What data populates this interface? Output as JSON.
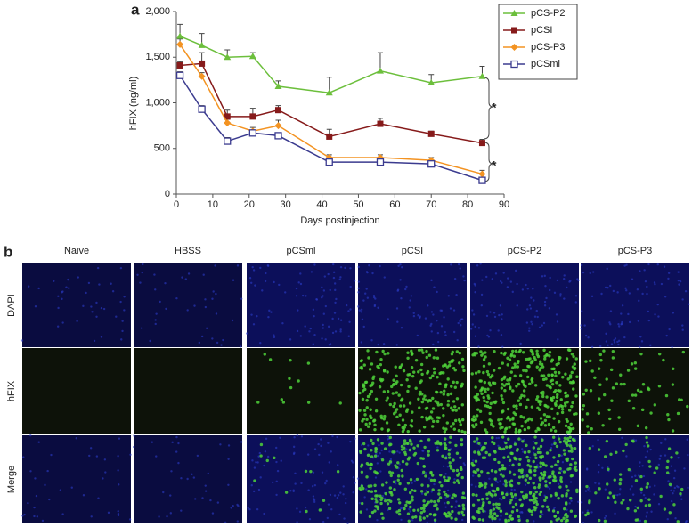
{
  "panel_labels": [
    "a",
    "b"
  ],
  "chart_data": {
    "type": "line",
    "x_label": "Days postinjection",
    "y_label": "hFIX (ng/ml)",
    "x": [
      1,
      7,
      14,
      21,
      28,
      42,
      56,
      70,
      84
    ],
    "series": [
      {
        "name": "pCS-P2",
        "color": "#6cbf3c",
        "marker": "triangle",
        "values": [
          1730,
          1630,
          1500,
          1510,
          1180,
          1110,
          1350,
          1220,
          1290
        ],
        "errors": [
          130,
          130,
          80,
          40,
          60,
          170,
          200,
          90,
          110
        ]
      },
      {
        "name": "pCSI",
        "color": "#861a1a",
        "marker": "square",
        "values": [
          1410,
          1430,
          850,
          850,
          920,
          630,
          770,
          660,
          560
        ],
        "errors": [
          40,
          120,
          70,
          90,
          50,
          80,
          60,
          30,
          40
        ]
      },
      {
        "name": "pCS-P3",
        "color": "#f39322",
        "marker": "diamond",
        "values": [
          1640,
          1290,
          780,
          690,
          750,
          400,
          400,
          370,
          220
        ],
        "errors": [
          60,
          40,
          40,
          40,
          60,
          30,
          30,
          30,
          40
        ]
      },
      {
        "name": "pCSml",
        "color": "#3b3b8f",
        "marker": "open-square",
        "values": [
          1300,
          930,
          580,
          670,
          640,
          350,
          350,
          330,
          150
        ],
        "errors": [
          40,
          40,
          40,
          30,
          20,
          20,
          20,
          20,
          30
        ]
      }
    ],
    "xlim": [
      0,
      90
    ],
    "xticks": [
      0,
      10,
      20,
      30,
      40,
      50,
      60,
      70,
      80,
      90
    ],
    "ylim": [
      0,
      2000
    ],
    "yticks": [
      0,
      500,
      {
        "value": 1000,
        "label": "1,000"
      },
      {
        "value": 1500,
        "label": "1,500"
      },
      {
        "value": 2000,
        "label": "2,000"
      }
    ],
    "legend": "upper right outside",
    "annotations": [
      "*",
      "*"
    ]
  },
  "panel_b": {
    "columns": [
      "Naive",
      "HBSS",
      "pCSml",
      "pCSI",
      "pCS-P2",
      "pCS-P3"
    ],
    "rows": [
      "DAPI",
      "hFIX",
      "Merge"
    ]
  }
}
